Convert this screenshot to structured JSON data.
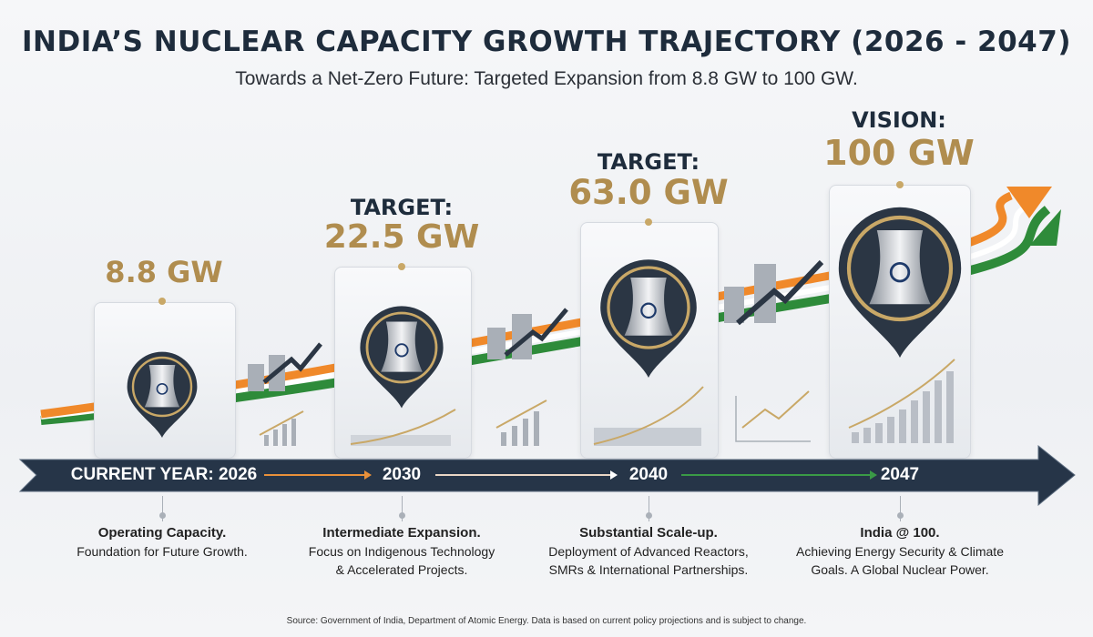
{
  "header": {
    "title": "INDIA’S NUCLEAR CAPACITY GROWTH TRAJECTORY (2026 - 2047)",
    "subtitle": "Towards a Net-Zero Future: Targeted Expansion from 8.8 GW to 100 GW."
  },
  "milestones": [
    {
      "label": "",
      "value": "8.8 GW",
      "year": "CURRENT YEAR: 2026",
      "heading": "Operating Capacity.",
      "desc1": "Foundation for Future Growth.",
      "desc2": "",
      "capacity_gw": 8.8
    },
    {
      "label": "TARGET:",
      "value": "22.5 GW",
      "year": "2030",
      "heading": "Intermediate Expansion.",
      "desc1": "Focus on Indigenous Technology",
      "desc2": "& Accelerated Projects.",
      "capacity_gw": 22.5
    },
    {
      "label": "TARGET:",
      "value": "63.0 GW",
      "year": "2040",
      "heading": "Substantial Scale-up.",
      "desc1": "Deployment of Advanced Reactors,",
      "desc2": "SMRs & International Partnerships.",
      "capacity_gw": 63.0
    },
    {
      "label": "VISION:",
      "value": "100 GW",
      "year": "2047",
      "heading": "India @ 100.",
      "desc1": "Achieving Energy Security & Climate",
      "desc2": "Goals. A Global Nuclear Power.",
      "capacity_gw": 100
    }
  ],
  "source": "Source: Government of India, Department of Atomic Energy. Data is based on current policy projections and is subject to change.",
  "colors": {
    "navy": "#1e2c3c",
    "gold": "#b08d4f",
    "saffron": "#f0892a",
    "green": "#2e8b3a"
  },
  "icons": [
    "cooling-tower-icon",
    "growth-chart-icon",
    "ashoka-chakra-icon"
  ]
}
